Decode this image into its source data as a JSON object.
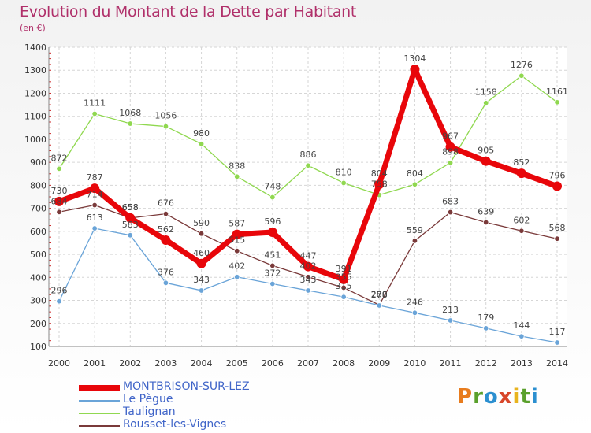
{
  "title": "Evolution du Montant de la Dette par Habitant",
  "subtitle": "(en €)",
  "logo": {
    "letters": [
      "P",
      "r",
      "o",
      "x",
      "i",
      "t",
      "i"
    ],
    "colors": [
      "#e87c1e",
      "#5aa02c",
      "#2b8fd0",
      "#d8462a",
      "#e8b31e",
      "#5aa02c",
      "#2b8fd0"
    ]
  },
  "chart_data": {
    "type": "line",
    "x": [
      "2000",
      "2001",
      "2002",
      "2003",
      "2004",
      "2005",
      "2006",
      "2007",
      "2008",
      "2009",
      "2010",
      "2011",
      "2012",
      "2013",
      "2014"
    ],
    "ylim": [
      100,
      1400
    ],
    "yticks": [
      100,
      200,
      300,
      400,
      500,
      600,
      700,
      800,
      900,
      1000,
      1100,
      1200,
      1300,
      1400
    ],
    "grid": true,
    "legend_position": "bottom-left",
    "series": [
      {
        "name": "MONTBRISON-SUR-LEZ",
        "color": "#e8060a",
        "values": [
          730,
          787,
          658,
          562,
          460,
          587,
          596,
          447,
          391,
          804,
          1304,
          967,
          905,
          852,
          796
        ],
        "labels": [
          "730",
          "787",
          "658",
          "562",
          "460",
          "587",
          "596",
          "447",
          "391",
          "804",
          "1304",
          "967",
          "905",
          "852",
          "796"
        ]
      },
      {
        "name": "Le Pègue",
        "color": "#6aa4d8",
        "values": [
          296,
          613,
          583,
          376,
          343,
          402,
          372,
          343,
          315,
          278,
          246,
          213,
          179,
          144,
          117
        ],
        "labels": [
          "296",
          "613",
          "583",
          "376",
          "343",
          "402",
          "372",
          "343",
          "315",
          "278",
          "246",
          "213",
          "179",
          "144",
          "117"
        ]
      },
      {
        "name": "Taulignan",
        "color": "#90d850",
        "values": [
          872,
          1111,
          1068,
          1056,
          980,
          838,
          748,
          886,
          810,
          758,
          804,
          898,
          1158,
          1276,
          1161
        ],
        "labels": [
          "872",
          "1111",
          "1068",
          "1056",
          "980",
          "838",
          "748",
          "886",
          "810",
          "758",
          "804",
          "898",
          "1158",
          "1276",
          "1161"
        ]
      },
      {
        "name": "Rousset-les-Vignes",
        "color": "#7a3a3a",
        "values": [
          684,
          714,
          658,
          676,
          590,
          515,
          451,
          402,
          355,
          280,
          559,
          683,
          639,
          602,
          568
        ],
        "labels": [
          "684",
          "714",
          "658",
          "676",
          "590",
          "515",
          "451",
          "402",
          "355",
          "280",
          "559",
          "683",
          "639",
          "602",
          "568"
        ]
      }
    ]
  }
}
